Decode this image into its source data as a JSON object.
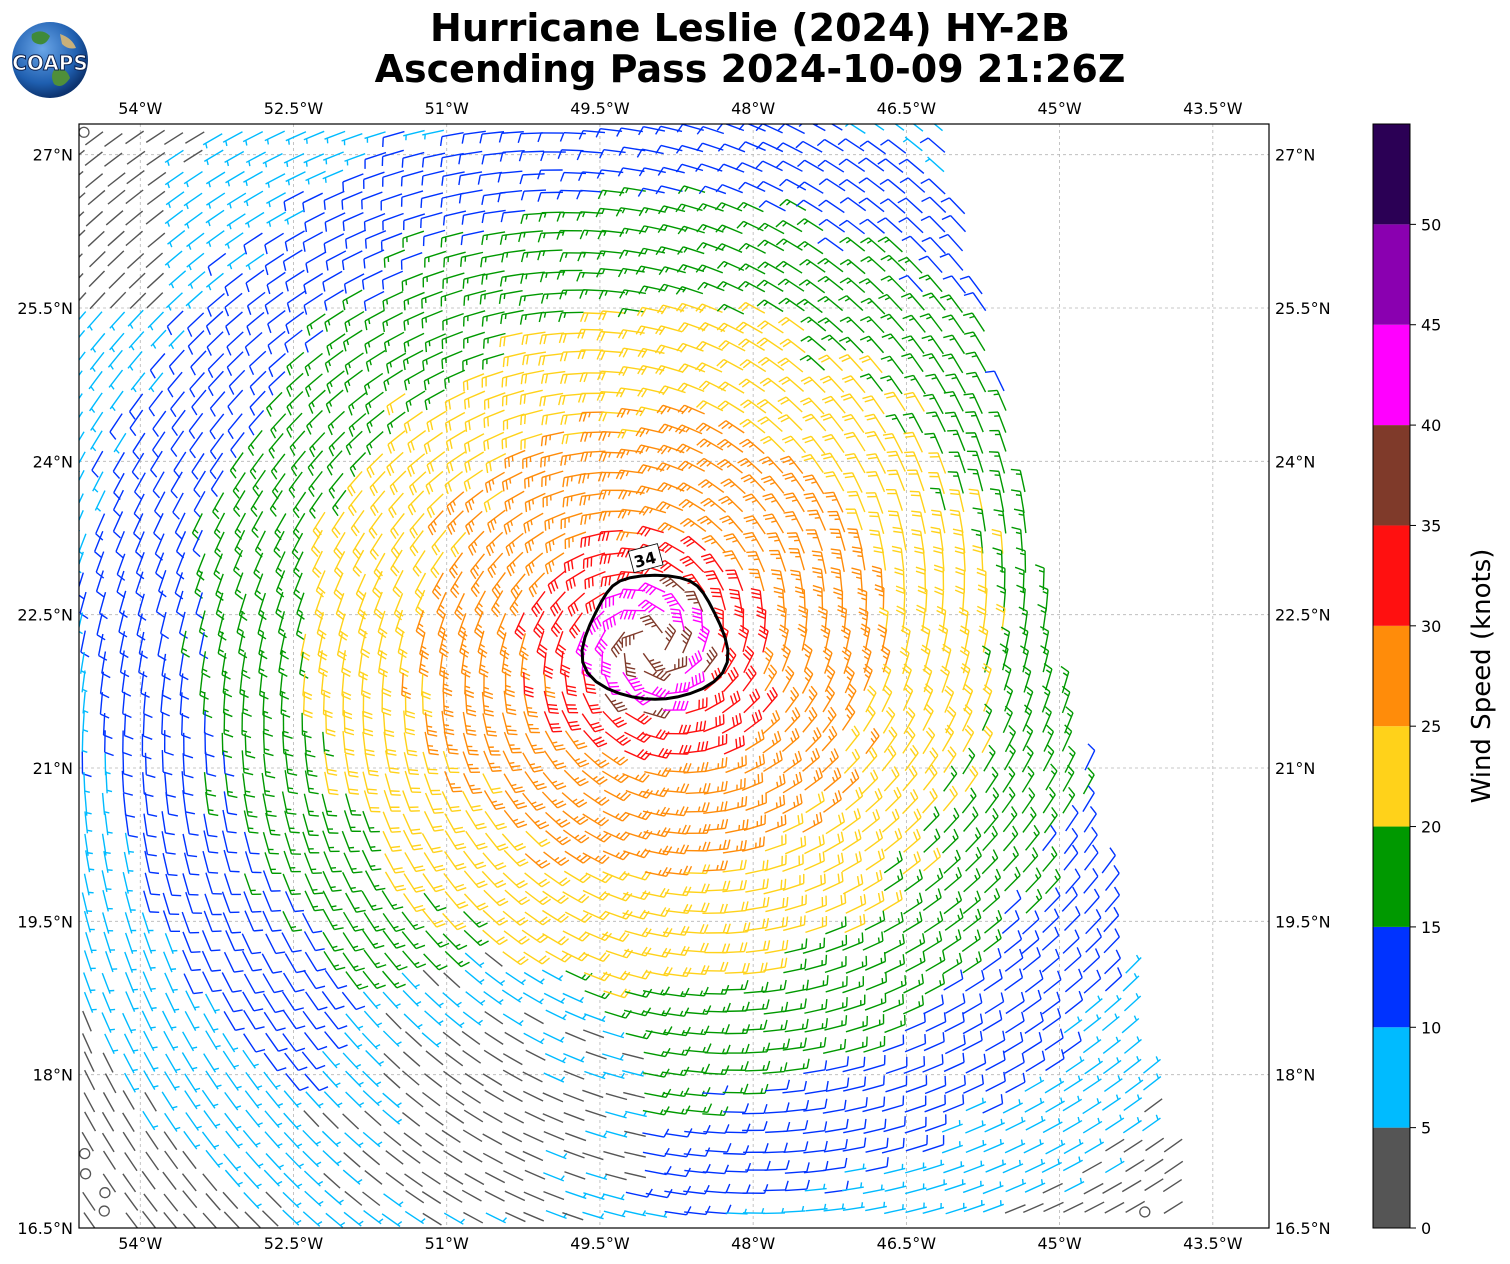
{
  "title": {
    "line1": "Hurricane Leslie (2024) HY-2B",
    "line2": "Ascending Pass 2024-10-09 21:26Z"
  },
  "logo": {
    "text": "COAPS"
  },
  "map": {
    "lon_ticks": [
      "54°W",
      "52.5°W",
      "51°W",
      "49.5°W",
      "48°W",
      "46.5°W",
      "45°W",
      "43.5°W"
    ],
    "lat_ticks": [
      "27°N",
      "25.5°N",
      "24°N",
      "22.5°N",
      "21°N",
      "19.5°N",
      "18°N",
      "16.5°N"
    ],
    "contour_label": "34",
    "storm_center": {
      "lon": -49.0,
      "lat": 22.2
    },
    "gridlines": true
  },
  "colorbar": {
    "label": "Wind Speed (knots)",
    "ticks": [
      "0",
      "5",
      "10",
      "15",
      "20",
      "25",
      "30",
      "35",
      "40",
      "45",
      "50"
    ],
    "bins": [
      {
        "from": 0,
        "to": 5,
        "color": "#555555"
      },
      {
        "from": 5,
        "to": 10,
        "color": "#00bbff"
      },
      {
        "from": 10,
        "to": 15,
        "color": "#0033ff"
      },
      {
        "from": 15,
        "to": 20,
        "color": "#009900"
      },
      {
        "from": 20,
        "to": 25,
        "color": "#ffd21a"
      },
      {
        "from": 25,
        "to": 30,
        "color": "#ff8c0a"
      },
      {
        "from": 30,
        "to": 35,
        "color": "#ff1010"
      },
      {
        "from": 35,
        "to": 40,
        "color": "#7f3a2a"
      },
      {
        "from": 40,
        "to": 45,
        "color": "#ff00ff"
      },
      {
        "from": 45,
        "to": 50,
        "color": "#8a00b0"
      },
      {
        "from": 50,
        "to": 55,
        "color": "#2b0055"
      }
    ]
  }
}
